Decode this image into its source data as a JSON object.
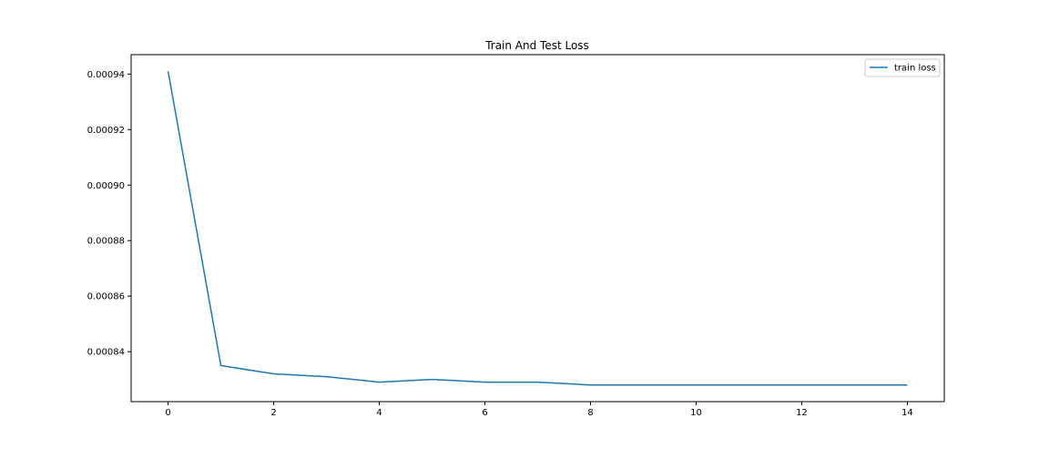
{
  "chart_data": {
    "type": "line",
    "title": "Train And Test Loss",
    "xlabel": "",
    "ylabel": "",
    "x": [
      0,
      1,
      2,
      3,
      4,
      5,
      6,
      7,
      8,
      9,
      10,
      11,
      12,
      13,
      14
    ],
    "series": [
      {
        "name": "train loss",
        "color": "#1f77b4",
        "values": [
          0.000941,
          0.000835,
          0.000832,
          0.000831,
          0.000829,
          0.00083,
          0.000829,
          0.000829,
          0.000828,
          0.000828,
          0.000828,
          0.000828,
          0.000828,
          0.000828,
          0.000828
        ]
      }
    ],
    "xlim": [
      -0.7,
      14.7
    ],
    "ylim": [
      0.000822,
      0.000947
    ],
    "x_ticks": [
      "0",
      "2",
      "4",
      "6",
      "8",
      "10",
      "12",
      "14"
    ],
    "y_ticks": [
      "0.00084",
      "0.00086",
      "0.00088",
      "0.00090",
      "0.00092",
      "0.00094"
    ],
    "grid": false,
    "legend_position": "top-right"
  }
}
